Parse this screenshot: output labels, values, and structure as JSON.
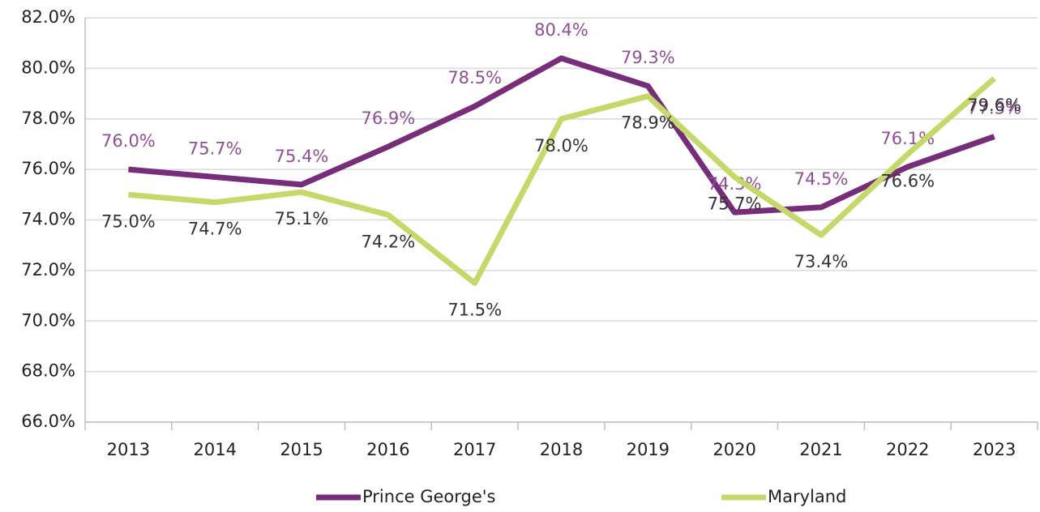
{
  "chart_data": {
    "type": "line",
    "categories": [
      "2013",
      "2014",
      "2015",
      "2016",
      "2017",
      "2018",
      "2019",
      "2020",
      "2021",
      "2022",
      "2023"
    ],
    "series": [
      {
        "name": "Prince George's",
        "color": "#772d7a",
        "label_color": "#8e4f93",
        "values": [
          76.0,
          75.7,
          75.4,
          76.9,
          78.5,
          80.4,
          79.3,
          74.3,
          74.5,
          76.1,
          77.3
        ],
        "value_labels": [
          "76.0%",
          "75.7%",
          "75.4%",
          "76.9%",
          "78.5%",
          "80.4%",
          "79.3%",
          "74.3%",
          "74.5%",
          "76.1%",
          "77.3%"
        ]
      },
      {
        "name": "Maryland",
        "color": "#c4d96a",
        "label_color": "#333333",
        "values": [
          75.0,
          74.7,
          75.1,
          74.2,
          71.5,
          78.0,
          78.9,
          75.7,
          73.4,
          76.6,
          79.6
        ],
        "value_labels": [
          "75.0%",
          "74.7%",
          "75.1%",
          "74.2%",
          "71.5%",
          "78.0%",
          "78.9%",
          "75.7%",
          "73.4%",
          "76.6%",
          "79.6%"
        ]
      }
    ],
    "ylim": [
      66,
      82
    ],
    "yticks": [
      {
        "value": 66,
        "label": "66.0%"
      },
      {
        "value": 68,
        "label": "68.0%"
      },
      {
        "value": 70,
        "label": "70.0%"
      },
      {
        "value": 72,
        "label": "72.0%"
      },
      {
        "value": 74,
        "label": "74.0%"
      },
      {
        "value": 76,
        "label": "76.0%"
      },
      {
        "value": 78,
        "label": "78.0%"
      },
      {
        "value": 80,
        "label": "80.0%"
      },
      {
        "value": 82,
        "label": "82.0%"
      }
    ],
    "grid": true,
    "legend": "bottom"
  }
}
